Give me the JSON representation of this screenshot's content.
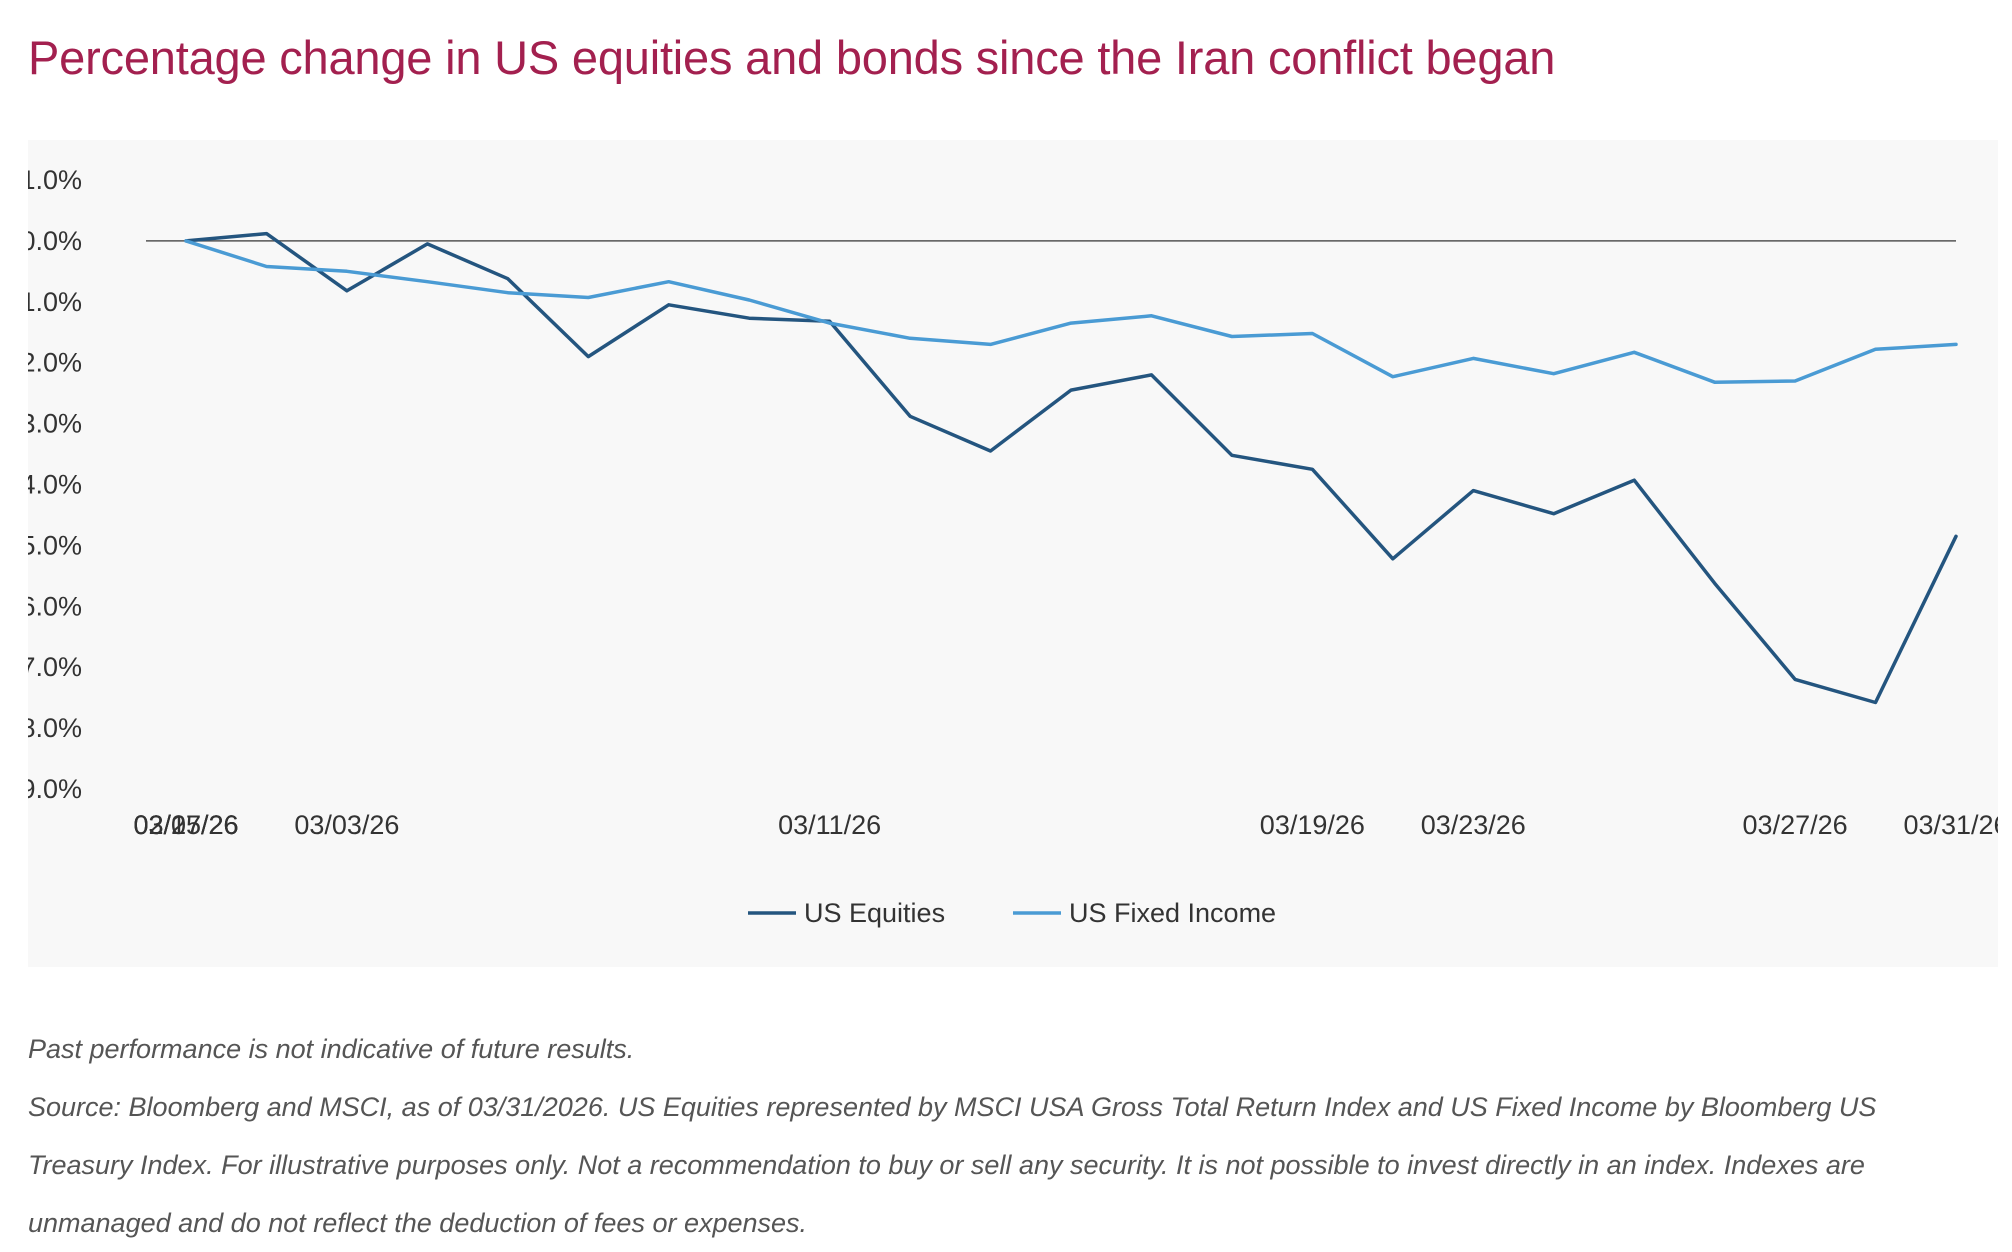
{
  "title": "Percentage change in US equities and bonds since the Iran conflict began",
  "colors": {
    "title": "#a3204f",
    "equities": "#24557f",
    "fixed_income": "#4a9bd4",
    "zero_line": "#555555",
    "panel": "#f8f8f8"
  },
  "chart_data": {
    "type": "line",
    "title": "Percentage change in US equities and bonds since the Iran conflict began",
    "x": [
      "02/27/26",
      "03/02/26",
      "03/03/26",
      "03/04/26",
      "03/05/26",
      "03/06/26",
      "03/09/26",
      "03/10/26",
      "03/11/26",
      "03/12/26",
      "03/13/26",
      "03/16/26",
      "03/17/26",
      "03/18/26",
      "03/19/26",
      "03/20/26",
      "03/23/26",
      "03/24/26",
      "03/25/26",
      "03/26/26",
      "03/27/26",
      "03/30/26",
      "03/31/26"
    ],
    "x_tick_labels": [
      "02/27/26",
      "03/03/26",
      "03/07/26",
      "03/11/26",
      "03/15/26",
      "03/19/26",
      "03/23/26",
      "03/27/26",
      "03/31/26"
    ],
    "y_tick_labels": [
      "1.0%",
      "0.0%",
      "-1.0%",
      "-2.0%",
      "-3.0%",
      "-4.0%",
      "-5.0%",
      "-6.0%",
      "-7.0%",
      "-8.0%",
      "-9.0%"
    ],
    "ylim": [
      -9.0,
      1.0
    ],
    "series": [
      {
        "name": "US Equities",
        "color": "#24557f",
        "values": [
          0.0,
          0.12,
          -0.82,
          -0.05,
          -0.62,
          -1.9,
          -1.05,
          -1.27,
          -1.32,
          -2.88,
          -3.45,
          -2.45,
          -2.2,
          -3.52,
          -3.75,
          -5.22,
          -4.1,
          -4.48,
          -3.93,
          -5.62,
          -7.2,
          -7.58,
          -4.85
        ]
      },
      {
        "name": "US Fixed Income",
        "color": "#4a9bd4",
        "values": [
          0.0,
          -0.42,
          -0.5,
          -0.67,
          -0.85,
          -0.93,
          -0.67,
          -0.97,
          -1.35,
          -1.6,
          -1.7,
          -1.35,
          -1.23,
          -1.57,
          -1.52,
          -2.23,
          -1.93,
          -2.18,
          -1.83,
          -2.32,
          -2.3,
          -1.78,
          -1.7
        ]
      }
    ],
    "legend": {
      "position": "bottom-center"
    },
    "grid": false
  },
  "notes": {
    "disclaimer": "Past performance is not indicative of future results.",
    "source": "Source: Bloomberg and MSCI, as of 03/31/2026. US Equities represented by MSCI USA Gross Total Return Index and US Fixed Income by Bloomberg US Treasury Index. For illustrative purposes only. Not a recommendation to buy or sell any security. It is not possible to invest directly in an index. Indexes are unmanaged and do not reflect the deduction of fees or expenses."
  }
}
